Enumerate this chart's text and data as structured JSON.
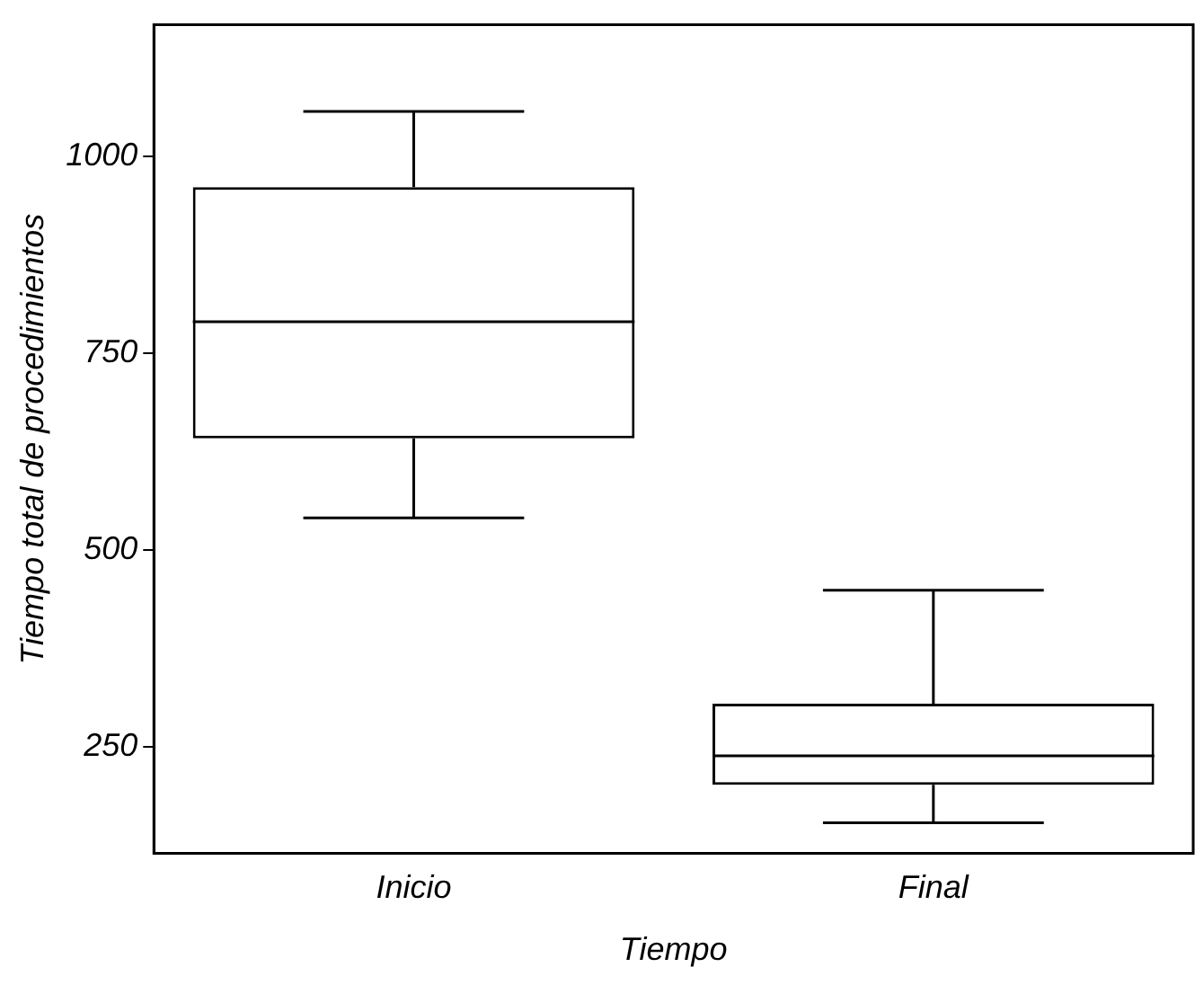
{
  "chart_data": {
    "type": "box",
    "xlabel": "Tiempo",
    "ylabel": "Tiempo total de procedimientos",
    "categories": [
      "Inicio",
      "Final"
    ],
    "boxes": [
      {
        "low": 541,
        "q1": 642,
        "median": 790,
        "q3": 961,
        "high": 1057
      },
      {
        "low": 154,
        "q1": 202,
        "median": 239,
        "q3": 305,
        "high": 449
      }
    ],
    "ylim": [
      115,
      1167
    ],
    "yticks": [
      250,
      500,
      750,
      1000
    ],
    "grid": false,
    "legend": false
  }
}
